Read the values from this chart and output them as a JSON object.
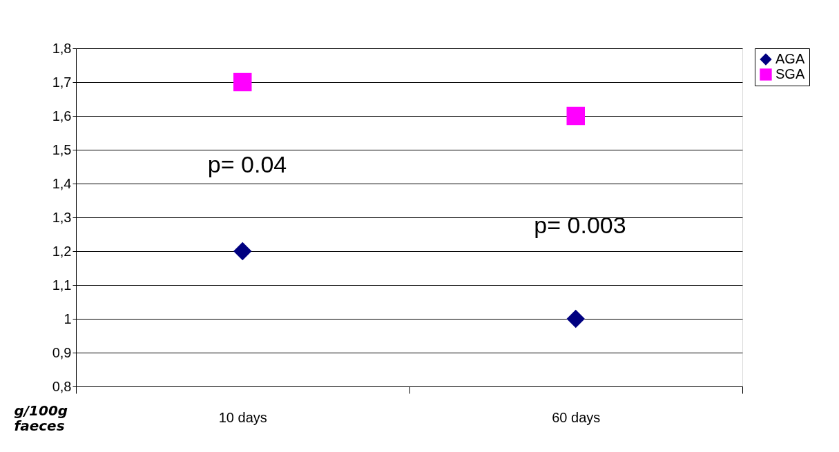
{
  "chart_data": {
    "type": "scatter",
    "categories": [
      "10 days",
      "60 days"
    ],
    "ylabel": "g/100g faeces",
    "series": [
      {
        "name": "AGA",
        "color": "#000080",
        "marker": "diamond",
        "values": [
          1.2,
          1.0
        ]
      },
      {
        "name": "SGA",
        "color": "#ff00ff",
        "marker": "square",
        "values": [
          1.7,
          1.6
        ]
      }
    ],
    "ylim": [
      0.8,
      1.8
    ],
    "yticks": [
      {
        "value": 0.8,
        "label": "0,8"
      },
      {
        "value": 0.9,
        "label": "0,9"
      },
      1,
      {
        "value": 1.1,
        "label": "1,1"
      },
      {
        "value": 1.2,
        "label": "1,2"
      },
      {
        "value": 1.3,
        "label": "1,3"
      },
      {
        "value": 1.4,
        "label": "1,4"
      },
      {
        "value": 1.5,
        "label": "1,5"
      },
      {
        "value": 1.6,
        "label": "1,6"
      },
      {
        "value": 1.7,
        "label": "1,7"
      },
      {
        "value": 1.8,
        "label": "1,8"
      }
    ],
    "annotations": [
      "p= 0.04",
      "p= 0.003"
    ],
    "grid": "y",
    "legend": "right"
  }
}
